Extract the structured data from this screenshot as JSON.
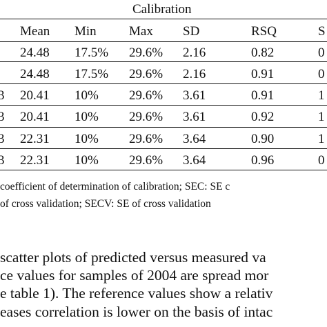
{
  "table": {
    "group_header": "Calibration",
    "columns": [
      "Mean",
      "Min",
      "Max",
      "SD",
      "RSQ",
      "S"
    ],
    "rows": [
      {
        "label": "",
        "cells": [
          "24.48",
          "17.5%",
          "29.6%",
          "2.16",
          "0.82",
          "0"
        ]
      },
      {
        "label": "",
        "cells": [
          "24.48",
          "17.5%",
          "29.6%",
          "2.16",
          "0.91",
          "0"
        ]
      },
      {
        "label": "3",
        "cells": [
          "20.41",
          "10%",
          "29.6%",
          "3.61",
          "0.91",
          "1"
        ]
      },
      {
        "label": "3",
        "cells": [
          "20.41",
          "10%",
          "29.6%",
          "3.61",
          "0.92",
          "1"
        ]
      },
      {
        "label": "3",
        "cells": [
          "22.31",
          "10%",
          "29.6%",
          "3.64",
          "0.90",
          "1"
        ]
      },
      {
        "label": "3",
        "cells": [
          "22.31",
          "10%",
          "29.6%",
          "3.64",
          "0.96",
          "0"
        ]
      }
    ]
  },
  "notes": [
    " coefficient of determination of calibration; SEC: SE c",
    "of cross validation; SECV: SE of cross validation"
  ],
  "paragraph": [
    " scatter plots of predicted versus measured va",
    "ce values for samples of 2004 are spread mor",
    "e table 1). The reference values show a relativ",
    "eases correlation is lower on the basis of intac"
  ]
}
